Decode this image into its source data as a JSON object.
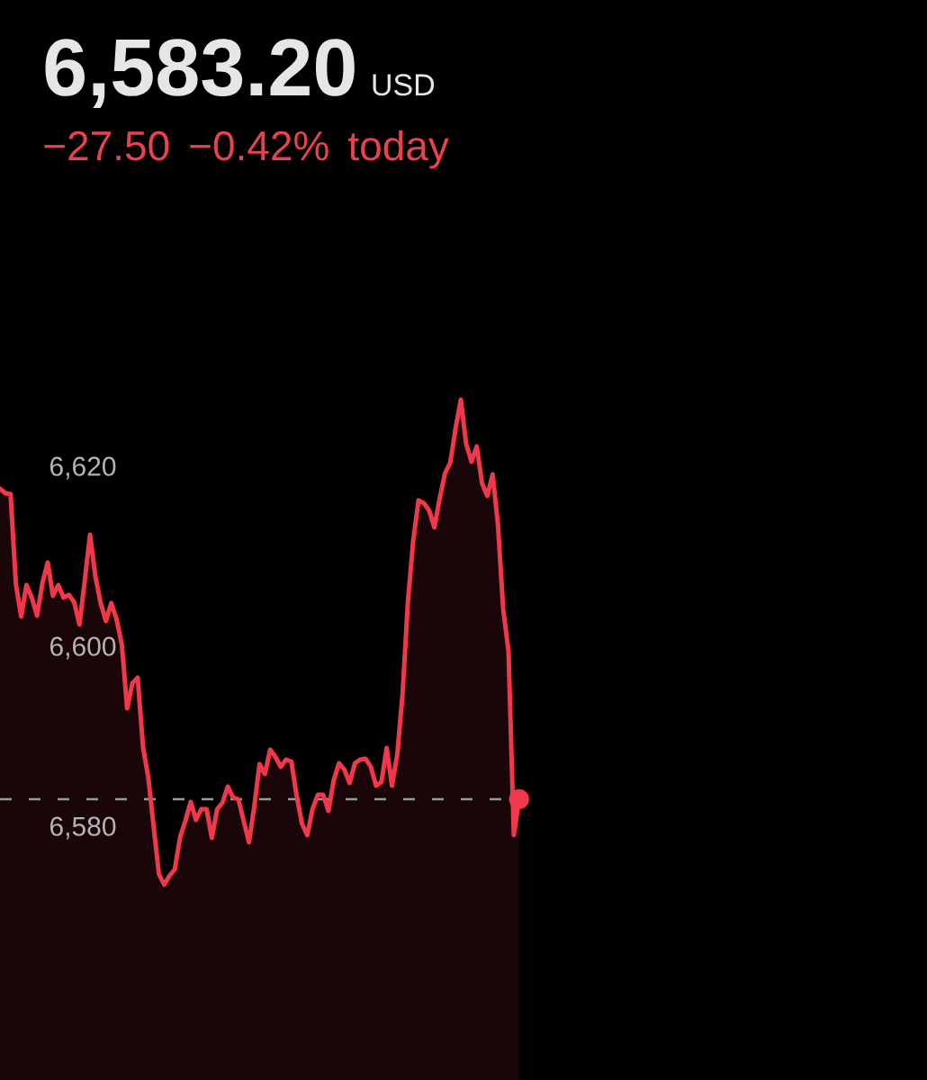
{
  "chart_data": {
    "type": "area",
    "title": "6,583.20",
    "subtitle": "−27.50 −0.42% today",
    "annotations": [
      "USD"
    ],
    "categories": [
      null,
      null,
      null,
      null,
      null,
      null,
      null,
      null,
      null,
      null,
      null,
      null,
      null,
      null,
      null,
      null,
      null,
      null,
      null,
      null,
      null,
      null,
      null,
      null,
      null,
      null,
      null,
      null,
      null,
      null,
      null,
      null,
      null,
      null,
      null,
      null,
      null,
      null,
      null,
      null,
      null,
      null,
      null,
      null,
      null,
      null,
      null,
      null,
      null,
      null,
      null,
      null,
      null,
      null,
      null,
      null,
      null,
      null,
      null,
      null,
      null,
      null,
      null,
      null,
      null,
      null,
      null,
      null,
      null,
      null,
      null,
      null,
      null,
      null,
      null,
      null,
      null,
      null,
      null,
      null,
      null,
      null,
      null,
      null,
      null,
      null,
      null,
      null,
      null,
      null,
      null,
      null,
      null,
      null,
      null,
      null,
      null,
      null,
      null,
      null,
      null,
      null,
      null,
      null,
      null,
      null,
      null,
      null,
      null,
      null,
      null,
      null,
      null,
      null,
      null,
      null,
      null,
      null,
      null,
      null,
      null,
      null,
      null,
      null,
      null,
      null,
      null,
      null,
      null,
      null,
      null,
      null,
      null,
      null,
      null,
      null,
      null,
      null,
      null,
      null,
      null,
      null,
      null,
      null,
      null,
      null,
      null,
      null,
      null,
      null,
      null,
      null,
      null,
      null,
      null,
      null,
      null,
      null,
      null,
      null,
      null,
      null,
      null,
      null,
      null,
      null,
      null,
      null,
      null,
      null,
      null,
      null,
      null,
      null,
      null,
      null
    ],
    "ylim": [
      6552,
      6672
    ],
    "yticks": [
      {
        "value": 6580,
        "label": "6,580"
      },
      {
        "value": 6600,
        "label": "6,600"
      },
      {
        "value": 6620,
        "label": "6,620"
      }
    ],
    "tick_labels": "y",
    "series": [
      {
        "color": "#f0384a",
        "values": [
          6617.7,
          6617.2,
          6617.1,
          6607.1,
          6603.5,
          6607.0,
          6605.6,
          6603.6,
          6607.2,
          6609.5,
          6605.8,
          6607.0,
          6605.6,
          6605.9,
          6605.1,
          6602.6,
          6607.5,
          6612.6,
          6608.0,
          6605.0,
          6603.0,
          6605.0,
          6603.2,
          6600.4,
          6593.3,
          6596.1,
          6596.7,
          6589.0,
          6585.6,
          6580.2,
          6574.9,
          6573.7,
          6574.7,
          6575.4,
          6579.0,
          6580.8,
          6582.9,
          6580.9,
          6582.1,
          6582.1,
          6578.9,
          6582.1,
          6582.8,
          6584.6,
          6583.4,
          6583.2,
          6580.8,
          6578.4,
          6582.4,
          6587.1,
          6586.0,
          6588.7,
          6587.9,
          6586.8,
          6587.6,
          6587.4,
          6583.6,
          6580.5,
          6579.2,
          6582.1,
          6583.7,
          6583.7,
          6581.9,
          6585.3,
          6587.2,
          6586.5,
          6585.0,
          6587.2,
          6587.6,
          6587.7,
          6586.8,
          6584.7,
          6585.1,
          6588.9,
          6584.7,
          6588.2,
          6594.9,
          6605.1,
          6611.9,
          6616.4,
          6616.1,
          6615.3,
          6613.4,
          6616.6,
          6619.4,
          6620.6,
          6624.4,
          6627.6,
          6622.7,
          6620.7,
          6622.4,
          6618.3,
          6616.9,
          6619.3,
          6613.7,
          6604.3,
          6599.6,
          6579.2,
          6583.2,
          null,
          null,
          null,
          null,
          null,
          null,
          null,
          null,
          null,
          null,
          null,
          null,
          null,
          null,
          null,
          null,
          null,
          null,
          null,
          null,
          null,
          null,
          null,
          null,
          null,
          null,
          null,
          null,
          null,
          null,
          null,
          null,
          null,
          null,
          null,
          null,
          null,
          null,
          null,
          null,
          null,
          null,
          null,
          null,
          null,
          null,
          null,
          null,
          null,
          null,
          null,
          null,
          null,
          null,
          null,
          null,
          null,
          null,
          null,
          null,
          null,
          null,
          null,
          null,
          null,
          null,
          null,
          null,
          null,
          null,
          null,
          null,
          null,
          null,
          null,
          null,
          null
        ]
      },
      {
        "type": "scatter",
        "color": "#f0384a",
        "marker": "circle",
        "values": [
          null,
          null,
          null,
          null,
          null,
          null,
          null,
          null,
          null,
          null,
          null,
          null,
          null,
          null,
          null,
          null,
          null,
          null,
          null,
          null,
          null,
          null,
          null,
          null,
          null,
          null,
          null,
          null,
          null,
          null,
          null,
          null,
          null,
          null,
          null,
          null,
          null,
          null,
          null,
          null,
          null,
          null,
          null,
          null,
          null,
          null,
          null,
          null,
          null,
          null,
          null,
          null,
          null,
          null,
          null,
          null,
          null,
          null,
          null,
          null,
          null,
          null,
          null,
          null,
          null,
          null,
          null,
          null,
          null,
          null,
          null,
          null,
          null,
          null,
          null,
          null,
          null,
          null,
          null,
          null,
          null,
          null,
          null,
          null,
          null,
          null,
          null,
          null,
          null,
          null,
          null,
          null,
          null,
          null,
          null,
          null,
          null,
          null,
          6583.2,
          null,
          null,
          null,
          null,
          null,
          null,
          null,
          null,
          null,
          null,
          null,
          null,
          null,
          null,
          null,
          null,
          null,
          null,
          null,
          null,
          null,
          null,
          null,
          null,
          null,
          null,
          null,
          null,
          null,
          null,
          null,
          null,
          null,
          null,
          null,
          null,
          null,
          null,
          null,
          null,
          null,
          null,
          null,
          null,
          null,
          null,
          null,
          null,
          null,
          null,
          null,
          null,
          null,
          null,
          null,
          null,
          null,
          null,
          null,
          null,
          null,
          null,
          null,
          null,
          null,
          null,
          null,
          null,
          null,
          null,
          null,
          null,
          null,
          null,
          null,
          null,
          null
        ]
      }
    ],
    "ref_lines": [
      {
        "axis": "y",
        "value": 6583.2,
        "color": "#9a9a9a",
        "line_style": "dashed"
      }
    ]
  }
}
